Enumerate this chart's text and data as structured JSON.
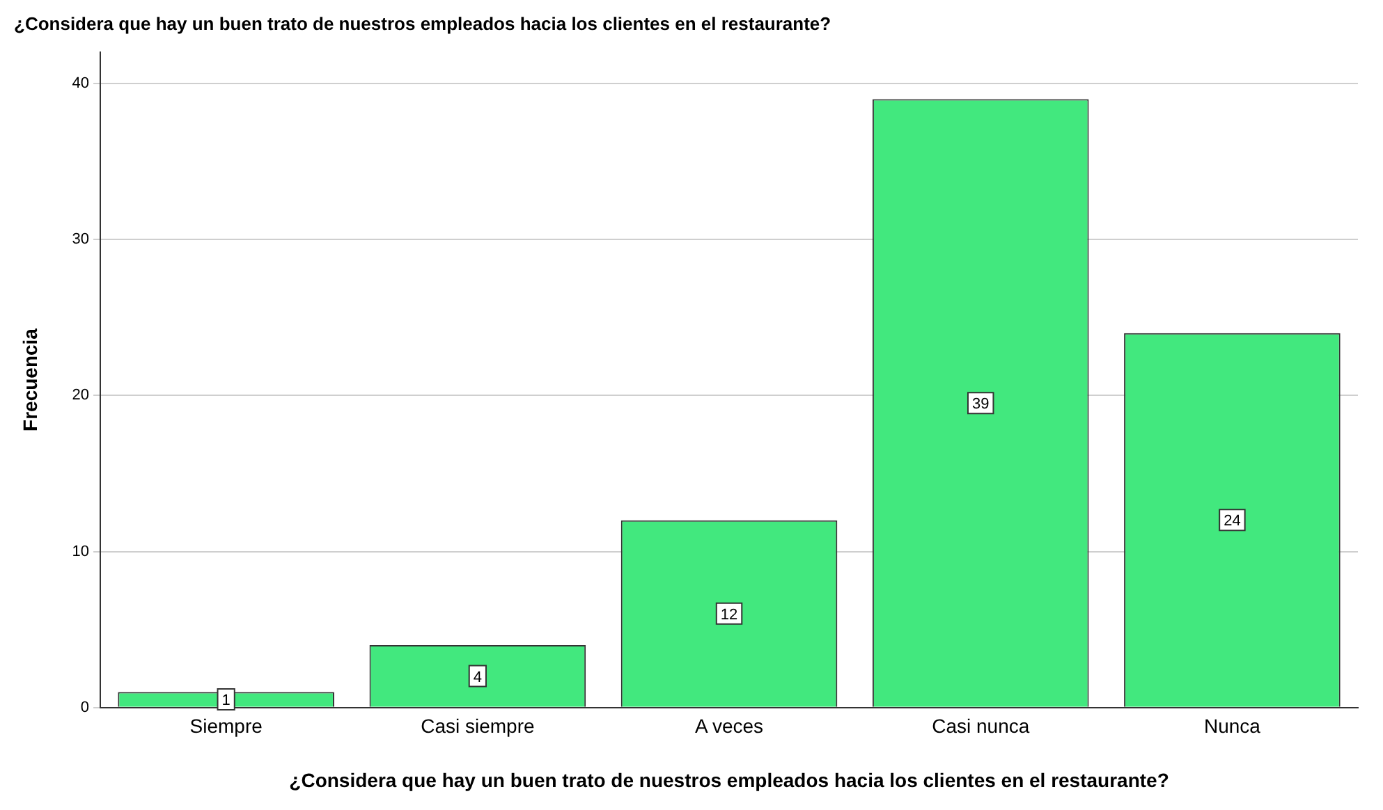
{
  "chart_data": {
    "type": "bar",
    "title": "¿Considera que hay un buen trato de nuestros empleados hacia los clientes en el restaurante?",
    "xlabel": "¿Considera que hay un buen trato de nuestros empleados hacia los clientes en el restaurante?",
    "ylabel": "Frecuencia",
    "categories": [
      "Siempre",
      "Casi siempre",
      "A veces",
      "Casi nunca",
      "Nunca"
    ],
    "values": [
      1,
      4,
      12,
      39,
      24
    ],
    "color": "#42e87e",
    "ylim": [
      0,
      42
    ],
    "yticks": [
      0,
      10,
      20,
      30,
      40
    ],
    "grid": "y",
    "legend": false,
    "data_labels": true
  }
}
